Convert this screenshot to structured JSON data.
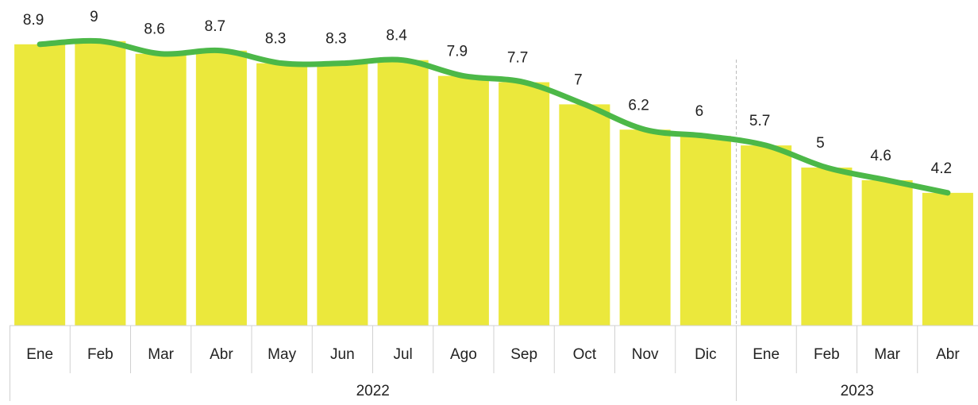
{
  "chart_data": {
    "type": "combo",
    "groups": [
      {
        "label": "2022",
        "categories": [
          "Ene",
          "Feb",
          "Mar",
          "Abr",
          "May",
          "Jun",
          "Jul",
          "Ago",
          "Sep",
          "Oct",
          "Nov",
          "Dic"
        ]
      },
      {
        "label": "2023",
        "categories": [
          "Ene",
          "Feb",
          "Mar",
          "Abr"
        ]
      }
    ],
    "values": [
      8.9,
      9.0,
      8.6,
      8.7,
      8.3,
      8.3,
      8.4,
      7.9,
      7.7,
      7.0,
      6.2,
      6.0,
      5.7,
      5.0,
      4.6,
      4.2
    ],
    "bar_color": "#ebe83c",
    "line_color": "#4cb848",
    "ylim": [
      0,
      10
    ]
  }
}
